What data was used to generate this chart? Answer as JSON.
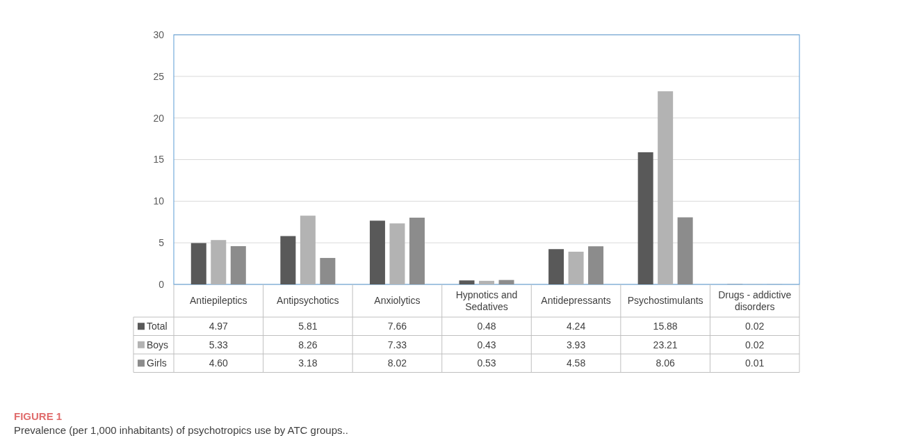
{
  "chart_data": {
    "type": "bar",
    "categories": [
      "Antiepileptics",
      "Antipsychotics",
      "Anxiolytics",
      "Hypnotics and Sedatives",
      "Antidepressants",
      "Psychostimulants",
      "Drugs - addictive disorders"
    ],
    "series": [
      {
        "name": "Total",
        "color": "#595959",
        "values": [
          4.97,
          5.81,
          7.66,
          0.48,
          4.24,
          15.88,
          0.02
        ],
        "value_labels": [
          "4.97",
          "5.81",
          "7.66",
          "0.48",
          "4.24",
          "15.88",
          "0.02"
        ]
      },
      {
        "name": "Boys",
        "color": "#b3b3b3",
        "values": [
          5.33,
          8.26,
          7.33,
          0.43,
          3.93,
          23.21,
          0.02
        ],
        "value_labels": [
          "5.33",
          "8.26",
          "7.33",
          "0.43",
          "3.93",
          "23.21",
          "0.02"
        ]
      },
      {
        "name": "Girls",
        "color": "#8c8c8c",
        "values": [
          4.6,
          3.18,
          8.02,
          0.53,
          4.58,
          8.06,
          0.01
        ],
        "value_labels": [
          "4.60",
          "3.18",
          "8.02",
          "0.53",
          "4.58",
          "8.06",
          "0.01"
        ]
      }
    ],
    "ylim": [
      0,
      30
    ],
    "yticks": [
      0,
      5,
      10,
      15,
      20,
      25,
      30
    ],
    "grid": "y",
    "legend": "bottom left",
    "annotations": [
      "FIGURE 1",
      "Prevalence (per 1,000 inhabitants) of psychotropics use by ATC groups.."
    ]
  }
}
